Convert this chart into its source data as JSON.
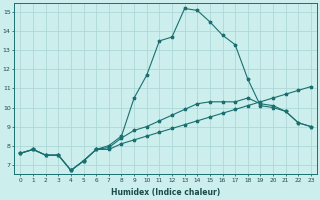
{
  "xlabel": "Humidex (Indice chaleur)",
  "bg_color": "#cceeed",
  "line_color": "#1a7070",
  "grid_color": "#aad4d4",
  "xlim": [
    -0.5,
    23.5
  ],
  "ylim": [
    6.5,
    15.5
  ],
  "xticks": [
    0,
    1,
    2,
    3,
    4,
    5,
    6,
    7,
    8,
    9,
    10,
    11,
    12,
    13,
    14,
    15,
    16,
    17,
    18,
    19,
    20,
    21,
    22,
    23
  ],
  "yticks": [
    7,
    8,
    9,
    10,
    11,
    12,
    13,
    14,
    15
  ],
  "line1_x": [
    0,
    1,
    2,
    3,
    4,
    5,
    6,
    7,
    8,
    9,
    10,
    11,
    12,
    13,
    14,
    15,
    16,
    17,
    18,
    19,
    20,
    21,
    22,
    23
  ],
  "line1_y": [
    7.6,
    7.8,
    7.5,
    7.5,
    6.7,
    7.2,
    7.8,
    7.8,
    8.1,
    8.3,
    8.5,
    8.7,
    8.9,
    9.1,
    9.3,
    9.5,
    9.7,
    9.9,
    10.1,
    10.3,
    10.5,
    10.7,
    10.9,
    11.1
  ],
  "line2_x": [
    0,
    1,
    2,
    3,
    4,
    5,
    6,
    7,
    8,
    9,
    10,
    11,
    12,
    13,
    14,
    15,
    16,
    17,
    18,
    19,
    20,
    21,
    22,
    23
  ],
  "line2_y": [
    7.6,
    7.8,
    7.5,
    7.5,
    6.7,
    7.2,
    7.8,
    7.9,
    8.4,
    8.8,
    9.0,
    9.3,
    9.6,
    9.9,
    10.2,
    10.3,
    10.3,
    10.3,
    10.5,
    10.2,
    10.1,
    9.8,
    9.2,
    9.0
  ],
  "line3_x": [
    0,
    1,
    2,
    3,
    4,
    5,
    6,
    7,
    8,
    9,
    10,
    11,
    12,
    13,
    14,
    15,
    16,
    17,
    18,
    19,
    20,
    21,
    22,
    23
  ],
  "line3_y": [
    7.6,
    7.8,
    7.5,
    7.5,
    6.7,
    7.2,
    7.8,
    8.0,
    8.5,
    10.5,
    11.7,
    13.5,
    13.7,
    15.2,
    15.1,
    14.5,
    13.8,
    13.3,
    11.5,
    10.1,
    10.0,
    9.8,
    9.2,
    9.0
  ]
}
